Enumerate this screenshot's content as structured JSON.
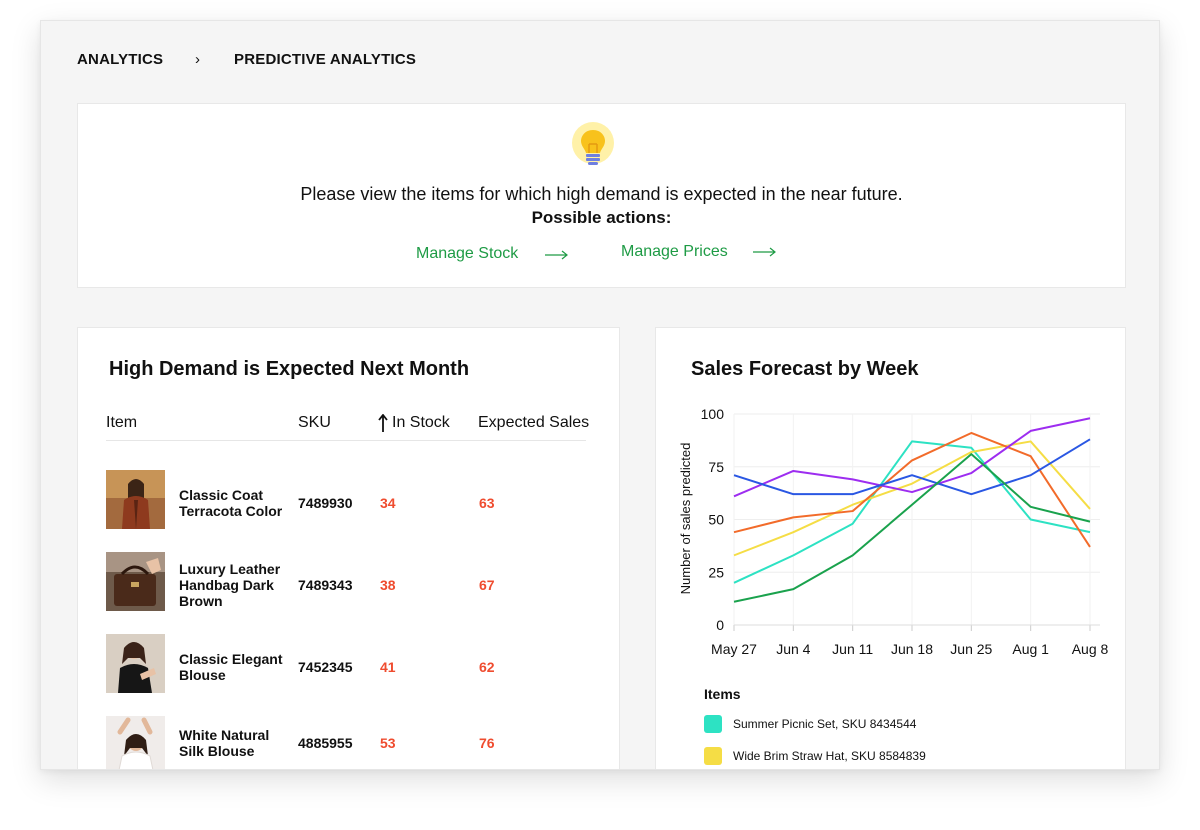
{
  "breadcrumb": {
    "root": "ANALYTICS",
    "separator": "›",
    "current": "PREDICTIVE ANALYTICS"
  },
  "banner": {
    "icon": "lightbulb-icon",
    "message": "Please view the items for which high demand is expected in the near future.",
    "actions_title": "Possible actions:",
    "manage_stock": "Manage Stock",
    "manage_prices": "Manage Prices",
    "link_color": "#1e9b45"
  },
  "demand_table": {
    "title": "High Demand is Expected Next Month",
    "columns": {
      "item": "Item",
      "sku": "SKU",
      "in_stock": "In Stock",
      "expected_sales": "Expected Sales"
    },
    "rows": [
      {
        "name": "Classic Coat Terracota Color",
        "sku": "7489930",
        "in_stock": "34",
        "expected_sales": "63"
      },
      {
        "name": "Luxury Leather Handbag Dark Brown",
        "sku": "7489343",
        "in_stock": "38",
        "expected_sales": "67"
      },
      {
        "name": "Classic Elegant Blouse",
        "sku": "7452345",
        "in_stock": "41",
        "expected_sales": "62"
      },
      {
        "name": "White Natural Silk Blouse",
        "sku": "4885955",
        "in_stock": "53",
        "expected_sales": "76"
      }
    ],
    "highlight_color": "#ef4c2f"
  },
  "forecast": {
    "title": "Sales Forecast by Week",
    "legend_title": "Items"
  },
  "chart_data": {
    "type": "line",
    "title": "Sales Forecast by Week",
    "xlabel": "",
    "ylabel": "Number of sales predicted",
    "ylim": [
      0,
      100
    ],
    "yticks": [
      0,
      25,
      50,
      75,
      100
    ],
    "categories": [
      "May 27",
      "Jun 4",
      "Jun 11",
      "Jun 18",
      "Jun 25",
      "Aug 1",
      "Aug 8"
    ],
    "grid": true,
    "legend_position": "bottom",
    "series": [
      {
        "name": "Summer Picnic Set, SKU 8434544",
        "color": "#2de2c3",
        "values": [
          20,
          33,
          48,
          87,
          84,
          50,
          44
        ]
      },
      {
        "name": "Wide Brim Straw Hat, SKU 8584839",
        "color": "#f5dd45",
        "values": [
          33,
          44,
          57,
          67,
          82,
          87,
          55
        ]
      },
      {
        "color": "#f26b2a",
        "values": [
          44,
          51,
          54,
          78,
          91,
          80,
          37
        ]
      },
      {
        "color": "#9d2df0",
        "values": [
          61,
          73,
          69,
          63,
          72,
          92,
          98
        ]
      },
      {
        "color": "#2a57e3",
        "values": [
          71,
          62,
          62,
          71,
          62,
          71,
          88
        ]
      },
      {
        "color": "#1aa24d",
        "values": [
          11,
          17,
          33,
          57,
          81,
          56,
          49
        ]
      }
    ]
  }
}
